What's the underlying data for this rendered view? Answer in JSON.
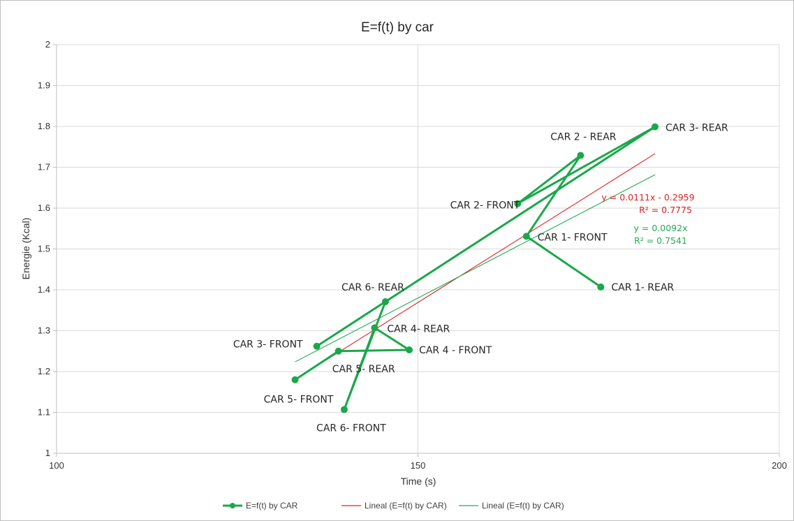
{
  "chart_data": {
    "type": "scatter",
    "title": "E=f(t) by car",
    "xlabel": "Time  (s)",
    "ylabel": "Energie  (Kcal)",
    "xlim": [
      100,
      200
    ],
    "ylim": [
      1,
      2
    ],
    "x_ticks": [
      "100",
      "150",
      "200"
    ],
    "y_ticks": [
      "1",
      "1.1",
      "1.2",
      "1.3",
      "1.4",
      "1.5",
      "1.6",
      "1.7",
      "1.8",
      "1.9",
      "2"
    ],
    "grid": true,
    "legend_position": "bottom",
    "series": [
      {
        "name": "E=f(t) by CAR",
        "color": "#1aa84a",
        "marker": "circle",
        "connected": true,
        "points": [
          {
            "label": "CAR 1- REAR",
            "x": 175.3,
            "y": 1.407
          },
          {
            "label": "CAR 1- FRONT",
            "x": 165.0,
            "y": 1.531
          },
          {
            "label": "CAR 2 - REAR",
            "x": 172.5,
            "y": 1.729
          },
          {
            "label": "CAR 2- FRONT",
            "x": 163.8,
            "y": 1.611
          },
          {
            "label": "CAR 3- REAR",
            "x": 182.8,
            "y": 1.799
          },
          {
            "label": "CAR 3- FRONT",
            "x": 136.0,
            "y": 1.262
          },
          {
            "label": "CAR 6- REAR",
            "x": 145.5,
            "y": 1.371
          },
          {
            "label": "CAR 6- FRONT",
            "x": 139.8,
            "y": 1.107
          },
          {
            "label": "CAR 4- REAR",
            "x": 144.0,
            "y": 1.307
          },
          {
            "label": "CAR 4 - FRONT",
            "x": 148.8,
            "y": 1.253
          },
          {
            "label": "CAR 5- REAR",
            "x": 139.0,
            "y": 1.25
          },
          {
            "label": "CAR 5- FRONT",
            "x": 133.0,
            "y": 1.18
          }
        ]
      },
      {
        "name": "Lineal (E=f(t) by CAR)",
        "color": "#e02020",
        "type": "trendline",
        "slope": 0.0111,
        "intercept": -0.2959,
        "x_range": [
          133,
          182.8
        ],
        "equation": "y = 0.0111x - 0.2959",
        "r2": "R² = 0.7775"
      },
      {
        "name": "Lineal (E=f(t) by CAR)",
        "color": "#22aa55",
        "type": "trendline",
        "slope": 0.0092,
        "intercept": 0,
        "x_range": [
          133,
          182.8
        ],
        "equation": "y = 0.0092x",
        "r2": "R² = 0.7541"
      }
    ]
  }
}
